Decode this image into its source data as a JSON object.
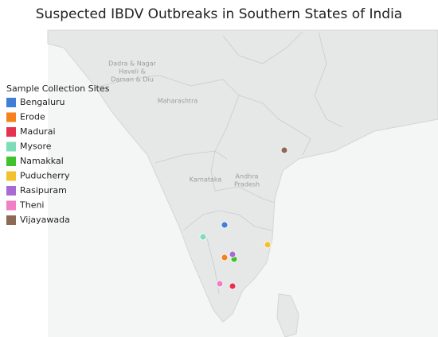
{
  "title": "Suspected IBDV Outbreaks in Southern States of India",
  "legend": {
    "title": "Sample Collection Sites",
    "items": [
      {
        "label": "Bengaluru",
        "color": "#3f7fd6"
      },
      {
        "label": "Erode",
        "color": "#f5821f"
      },
      {
        "label": "Madurai",
        "color": "#e5334f"
      },
      {
        "label": "Mysore",
        "color": "#7fdcb8"
      },
      {
        "label": "Namakkal",
        "color": "#3fc22c"
      },
      {
        "label": "Puducherry",
        "color": "#f2c12e"
      },
      {
        "label": "Rasipuram",
        "color": "#a86bd4"
      },
      {
        "label": "Theni",
        "color": "#f07fc3"
      },
      {
        "label": "Vijayawada",
        "color": "#8c6a56"
      }
    ]
  },
  "map_labels": [
    {
      "lines": [
        "Dadra & Nagar",
        "Haveli &",
        "Daman & Diu"
      ]
    },
    {
      "lines": [
        "Maharashtra"
      ]
    },
    {
      "lines": [
        "Karnataka"
      ]
    },
    {
      "lines": [
        "Andhra",
        "Pradesh"
      ]
    }
  ]
}
